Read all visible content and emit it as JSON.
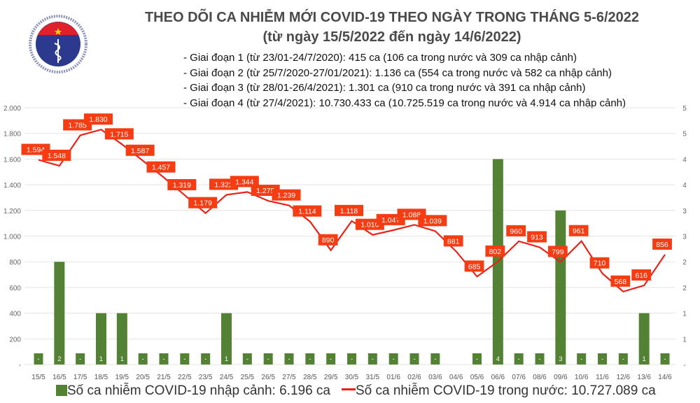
{
  "header": {
    "title": "THEO DÕI CA NHIỄM MỚI COVID-19 THEO NGÀY TRONG THÁNG 5-6/2022",
    "subtitle": "(từ ngày 15/5/2022 đến ngày 14/6/2022)",
    "notes": [
      "- Giai đoạn 1 (từ 23/01-24/7/2020): 415 ca (106 ca trong nước và 309 ca nhập cảnh)",
      "- Giai đoạn 2 (từ 25/7/2020-27/01/2021): 1.136 ca (554 ca trong nước và 582 ca nhập cảnh)",
      "- Giai đoạn 3 (từ 28/01-26/4/2021): 1.301 ca (910 ca trong nước và 391 ca nhập cảnh)",
      "- Giai đoạn 4 (từ 27/4/2021): 10.730.433 ca (10.725.519 ca trong nước và 4.914 ca nhập cảnh)"
    ],
    "logo_text": "BỘ Y TẾ MINISTRY OF HEALTH"
  },
  "chart_data": {
    "type": "bar+line",
    "categories": [
      "15/5",
      "16/5",
      "17/5",
      "18/5",
      "19/5",
      "20/5",
      "21/5",
      "22/5",
      "23/5",
      "24/5",
      "25/5",
      "26/5",
      "27/5",
      "28/5",
      "29/5",
      "30/5",
      "31/5",
      "01/6",
      "02/6",
      "03/6",
      "04/6",
      "05/6",
      "06/6",
      "07/6",
      "08/6",
      "09/6",
      "10/6",
      "11/6",
      "12/6",
      "13/6",
      "14/6"
    ],
    "series": [
      {
        "name": "Số ca nhiễm COVID-19 nhập cảnh: 6.196 ca",
        "type": "bar",
        "axis": "right",
        "color": "#548235",
        "values": [
          0,
          2,
          0,
          1,
          1,
          0,
          0,
          0,
          0,
          1,
          0,
          0,
          0,
          0,
          0,
          0,
          0,
          0,
          0,
          0,
          null,
          0,
          4,
          0,
          0,
          3,
          0,
          0,
          0,
          1,
          0
        ]
      },
      {
        "name": "Số ca nhiễm COVID-19 trong nước: 10.727.089 ca",
        "type": "line",
        "axis": "left",
        "color": "#e8231a",
        "values": [
          1594,
          1548,
          1785,
          1830,
          1715,
          1587,
          1457,
          1319,
          1179,
          1322,
          1344,
          1275,
          1239,
          1114,
          890,
          1118,
          1010,
          1047,
          1088,
          1039,
          881,
          685,
          802,
          960,
          913,
          799,
          961,
          710,
          568,
          616,
          856
        ]
      }
    ],
    "left_axis": {
      "range": [
        0,
        2000
      ],
      "ticks": [
        "-",
        "200",
        "400",
        "600",
        "800",
        "1.000",
        "1.200",
        "1.400",
        "1.600",
        "1.800",
        "2.000"
      ]
    },
    "right_axis": {
      "range": [
        0,
        5
      ],
      "ticks": [
        "-",
        "1",
        "1",
        "2",
        "2",
        "3",
        "3",
        "4",
        "4",
        "5",
        "5"
      ]
    },
    "zero_label": "-",
    "label_color": "#f53c12",
    "grid": true,
    "legend": "bottom"
  }
}
